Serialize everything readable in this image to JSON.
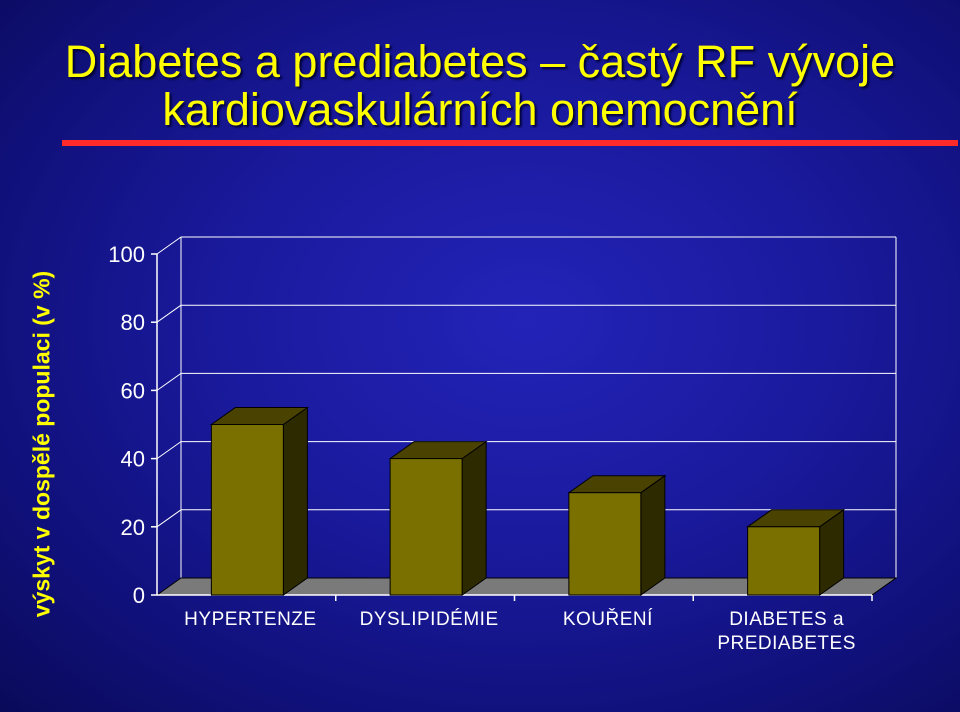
{
  "slide": {
    "title_line1": "Diabetes a prediabetes – častý RF vývoje",
    "title_line2": "kardiovaskulárních onemocnění",
    "title_color": "#ffff00",
    "rule_color": "#ff2b2b",
    "background_color": "#1a1a9e"
  },
  "chart_data": {
    "type": "bar",
    "style": "3d",
    "categories": [
      "HYPERTENZE",
      "DYSLIPIDÉMIE",
      "KOUŘENÍ",
      "DIABETES a PREDIABETES"
    ],
    "category_lines": [
      [
        "HYPERTENZE"
      ],
      [
        "DYSLIPIDÉMIE"
      ],
      [
        "KOUŘENÍ"
      ],
      [
        "DIABETES a",
        "PREDIABETES"
      ]
    ],
    "values": [
      50,
      40,
      30,
      20
    ],
    "ylabel": "výskyt v dospělé populaci (v %)",
    "xlabel": "",
    "ylim": [
      0,
      100
    ],
    "yticks": [
      0,
      20,
      40,
      60,
      80,
      100
    ],
    "grid": true,
    "bar_color": "#7a7000",
    "bar_top_color": "#4a4200",
    "bar_side_color": "#2e2a00",
    "floor_color": "#7a7a7a",
    "grid_color": "#ffffff"
  }
}
